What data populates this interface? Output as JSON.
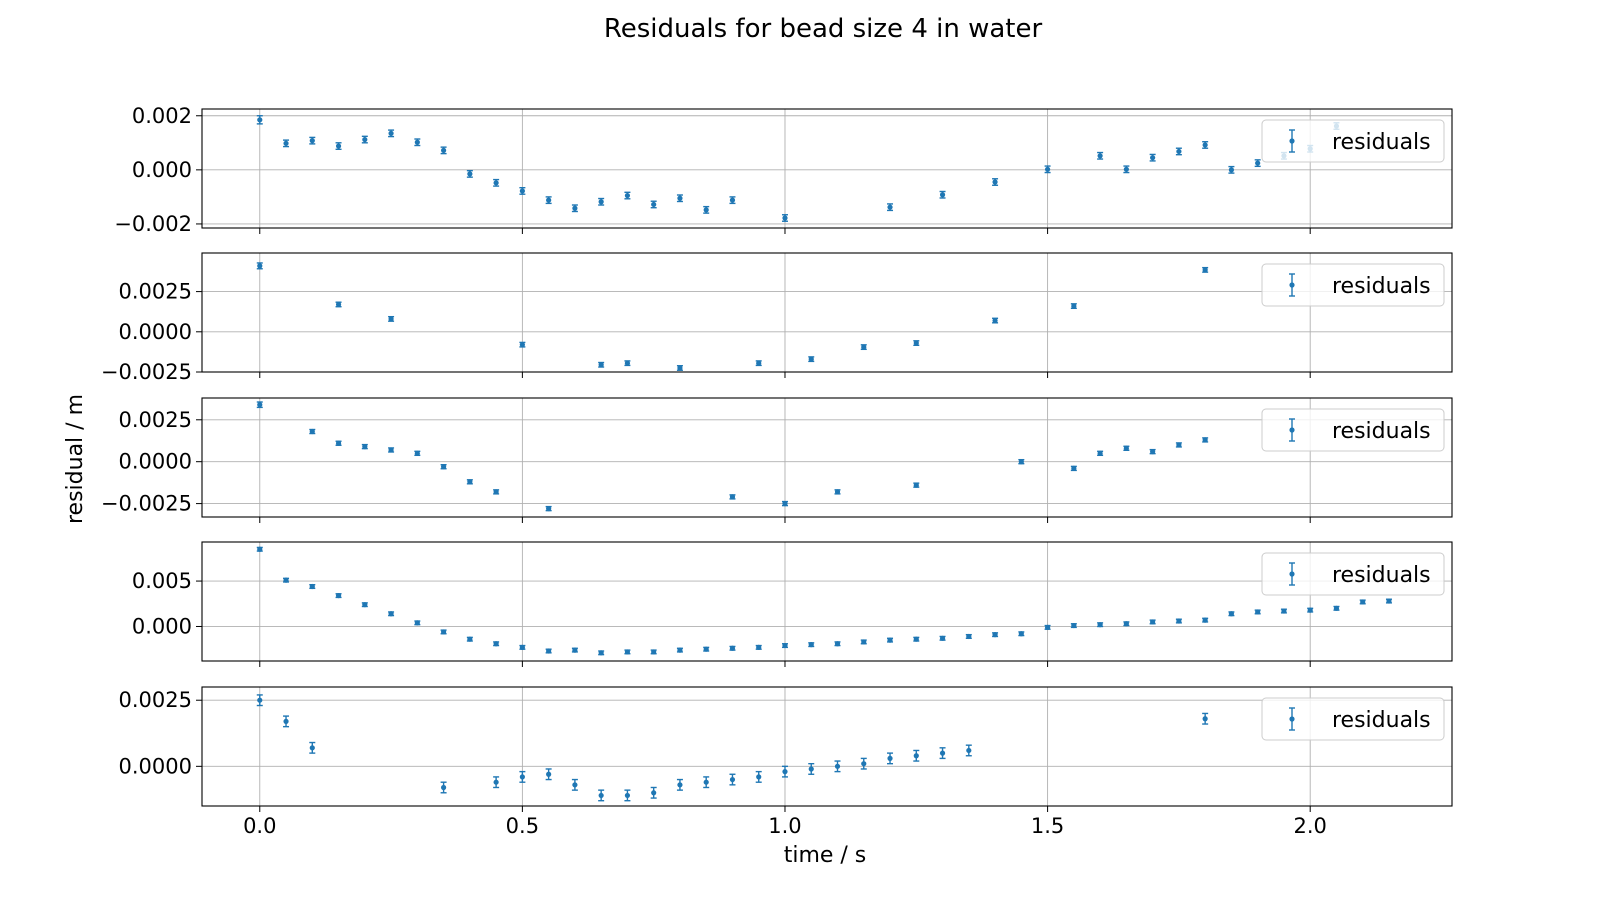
{
  "title": "Residuals for bead  size 4 in water",
  "ylabel": "residual / m",
  "xlabel": "time / s",
  "colors": {
    "series": "#1f77b4",
    "grid": "#b0b0b0",
    "axes": "#000000",
    "legend_border": "#cccccc"
  },
  "chart_data": [
    {
      "type": "scatter",
      "legend": "residuals",
      "legend_position": "upper right",
      "grid": true,
      "xlim": [
        -0.11,
        2.27
      ],
      "ylim": [
        -0.00215,
        0.00225
      ],
      "yticks": [
        -0.002,
        0.0,
        0.002
      ],
      "yticklabels": [
        "−0.002",
        "0.000",
        "0.002"
      ],
      "xticks": [
        0.0,
        0.5,
        1.0,
        1.5,
        2.0
      ],
      "xticklabels": [
        "0.0",
        "0.5",
        "1.0",
        "1.5",
        "2.0"
      ],
      "show_xticklabels": false,
      "x": [
        0.0,
        0.05,
        0.1,
        0.15,
        0.2,
        0.25,
        0.3,
        0.35,
        0.4,
        0.45,
        0.5,
        0.55,
        0.6,
        0.65,
        0.7,
        0.75,
        0.8,
        0.85,
        0.9,
        1.0,
        1.2,
        1.3,
        1.4,
        1.5,
        1.6,
        1.65,
        1.7,
        1.75,
        1.8,
        1.85,
        1.9,
        1.95,
        2.0,
        2.05
      ],
      "y": [
        0.00185,
        0.00098,
        0.00108,
        0.00088,
        0.00112,
        0.00135,
        0.00102,
        0.00072,
        -0.00015,
        -0.00048,
        -0.00078,
        -0.00112,
        -0.00142,
        -0.00118,
        -0.00095,
        -0.00128,
        -0.00105,
        -0.00148,
        -0.00112,
        -0.00178,
        -0.00138,
        -0.00092,
        -0.00045,
        2e-05,
        0.00052,
        2e-05,
        0.00045,
        0.00068,
        0.00092,
        0.0,
        0.00025,
        0.00052,
        0.00078,
        0.00162
      ],
      "yerr": [
        0.00015,
        0.00012,
        0.00012,
        0.00012,
        0.00012,
        0.00012,
        0.00012,
        0.00012,
        0.00012,
        0.00012,
        0.00012,
        0.00012,
        0.00012,
        0.00012,
        0.00012,
        0.00012,
        0.00012,
        0.00012,
        0.00012,
        0.00012,
        0.00012,
        0.00012,
        0.00012,
        0.00012,
        0.00012,
        0.00012,
        0.00012,
        0.00012,
        0.00012,
        0.00012,
        0.00012,
        0.00012,
        0.00012,
        0.00012
      ]
    },
    {
      "type": "scatter",
      "legend": "residuals",
      "legend_position": "upper right",
      "grid": true,
      "xlim": [
        -0.11,
        2.27
      ],
      "ylim": [
        -0.0025,
        0.0049
      ],
      "yticks": [
        -0.0025,
        0.0,
        0.0025
      ],
      "yticklabels": [
        "−0.0025",
        "0.0000",
        "0.0025"
      ],
      "xticks": [
        0.0,
        0.5,
        1.0,
        1.5,
        2.0
      ],
      "xticklabels": [
        "0.0",
        "0.5",
        "1.0",
        "1.5",
        "2.0"
      ],
      "show_xticklabels": false,
      "x": [
        0.0,
        0.15,
        0.25,
        0.5,
        0.65,
        0.7,
        0.8,
        0.95,
        1.05,
        1.15,
        1.25,
        1.4,
        1.55,
        1.8
      ],
      "y": [
        0.0041,
        0.0017,
        0.0008,
        -0.0008,
        -0.00205,
        -0.00195,
        -0.00225,
        -0.00195,
        -0.0017,
        -0.00095,
        -0.0007,
        0.0007,
        0.0016,
        0.00385
      ],
      "yerr": [
        0.00018,
        0.00014,
        0.00014,
        0.00014,
        0.00014,
        0.00014,
        0.00014,
        0.00014,
        0.00014,
        0.00014,
        0.00014,
        0.00014,
        0.00014,
        0.00014
      ]
    },
    {
      "type": "scatter",
      "legend": "residuals",
      "legend_position": "upper right",
      "grid": true,
      "xlim": [
        -0.11,
        2.27
      ],
      "ylim": [
        -0.0033,
        0.0038
      ],
      "yticks": [
        -0.0025,
        0.0,
        0.0025
      ],
      "yticklabels": [
        "−0.0025",
        "0.0000",
        "0.0025"
      ],
      "xticks": [
        0.0,
        0.5,
        1.0,
        1.5,
        2.0
      ],
      "xticklabels": [
        "0.0",
        "0.5",
        "1.0",
        "1.5",
        "2.0"
      ],
      "show_xticklabels": false,
      "x": [
        0.0,
        0.1,
        0.15,
        0.2,
        0.25,
        0.3,
        0.35,
        0.4,
        0.45,
        0.55,
        0.9,
        1.0,
        1.1,
        1.25,
        1.45,
        1.55,
        1.6,
        1.65,
        1.7,
        1.75,
        1.8
      ],
      "y": [
        0.0034,
        0.0018,
        0.0011,
        0.0009,
        0.0007,
        0.0005,
        -0.0003,
        -0.0012,
        -0.0018,
        -0.0028,
        -0.0021,
        -0.0025,
        -0.0018,
        -0.0014,
        0.0,
        -0.0004,
        0.0005,
        0.0008,
        0.0006,
        0.001,
        0.0013
      ],
      "yerr": [
        0.00016,
        0.00012,
        0.00012,
        0.00012,
        0.00012,
        0.00012,
        0.00012,
        0.00012,
        0.00012,
        0.00012,
        0.00012,
        0.00012,
        0.00012,
        0.00012,
        0.00012,
        0.00012,
        0.00012,
        0.00012,
        0.00012,
        0.00012,
        0.00012
      ]
    },
    {
      "type": "scatter",
      "legend": "residuals",
      "legend_position": "upper right",
      "grid": true,
      "xlim": [
        -0.11,
        2.27
      ],
      "ylim": [
        -0.0038,
        0.0093
      ],
      "yticks": [
        0.0,
        0.005
      ],
      "yticklabels": [
        "0.000",
        "0.005"
      ],
      "xticks": [
        0.0,
        0.5,
        1.0,
        1.5,
        2.0
      ],
      "xticklabels": [
        "0.0",
        "0.5",
        "1.0",
        "1.5",
        "2.0"
      ],
      "show_xticklabels": false,
      "x": [
        0.0,
        0.05,
        0.1,
        0.15,
        0.2,
        0.25,
        0.3,
        0.35,
        0.4,
        0.45,
        0.5,
        0.55,
        0.6,
        0.65,
        0.7,
        0.75,
        0.8,
        0.85,
        0.9,
        0.95,
        1.0,
        1.05,
        1.1,
        1.15,
        1.2,
        1.25,
        1.3,
        1.35,
        1.4,
        1.45,
        1.5,
        1.55,
        1.6,
        1.65,
        1.7,
        1.75,
        1.8,
        1.85,
        1.9,
        1.95,
        2.0,
        2.05,
        2.1,
        2.15
      ],
      "y": [
        0.0085,
        0.0051,
        0.0044,
        0.0034,
        0.0024,
        0.0014,
        0.0004,
        -0.0006,
        -0.0014,
        -0.0019,
        -0.0023,
        -0.0027,
        -0.0026,
        -0.0029,
        -0.0028,
        -0.0028,
        -0.0026,
        -0.0025,
        -0.0024,
        -0.0023,
        -0.0021,
        -0.002,
        -0.0019,
        -0.0017,
        -0.0015,
        -0.0014,
        -0.0013,
        -0.0011,
        -0.0009,
        -0.0008,
        -0.0001,
        0.0001,
        0.0002,
        0.0003,
        0.0005,
        0.0006,
        0.0007,
        0.0014,
        0.0016,
        0.0017,
        0.0018,
        0.002,
        0.0027,
        0.0028
      ],
      "yerr": [
        0.0002,
        0.0002,
        0.0002,
        0.0002,
        0.0002,
        0.0002,
        0.0002,
        0.0002,
        0.0002,
        0.0002,
        0.0002,
        0.0002,
        0.0002,
        0.0002,
        0.0002,
        0.0002,
        0.0002,
        0.0002,
        0.0002,
        0.0002,
        0.0002,
        0.0002,
        0.0002,
        0.0002,
        0.0002,
        0.0002,
        0.0002,
        0.0002,
        0.0002,
        0.0002,
        0.0002,
        0.0002,
        0.0002,
        0.0002,
        0.0002,
        0.0002,
        0.0002,
        0.0002,
        0.0002,
        0.0002,
        0.0002,
        0.0002,
        0.0002,
        0.0002
      ]
    },
    {
      "type": "scatter",
      "legend": "residuals",
      "legend_position": "upper right",
      "grid": true,
      "xlim": [
        -0.11,
        2.27
      ],
      "ylim": [
        -0.0015,
        0.003
      ],
      "yticks": [
        0.0,
        0.0025
      ],
      "yticklabels": [
        "0.0000",
        "0.0025"
      ],
      "xticks": [
        0.0,
        0.5,
        1.0,
        1.5,
        2.0
      ],
      "xticklabels": [
        "0.0",
        "0.5",
        "1.0",
        "1.5",
        "2.0"
      ],
      "show_xticklabels": true,
      "x": [
        0.0,
        0.05,
        0.1,
        0.35,
        0.45,
        0.5,
        0.55,
        0.6,
        0.65,
        0.7,
        0.75,
        0.8,
        0.85,
        0.9,
        0.95,
        1.0,
        1.05,
        1.1,
        1.15,
        1.2,
        1.25,
        1.3,
        1.35,
        1.8
      ],
      "y": [
        0.0025,
        0.0017,
        0.0007,
        -0.0008,
        -0.0006,
        -0.0004,
        -0.0003,
        -0.0007,
        -0.0011,
        -0.0011,
        -0.001,
        -0.0007,
        -0.0006,
        -0.0005,
        -0.0004,
        -0.0002,
        -0.0001,
        0.0,
        0.0001,
        0.0003,
        0.0004,
        0.0005,
        0.0006,
        0.0018
      ],
      "yerr": [
        0.0002,
        0.0002,
        0.0002,
        0.0002,
        0.0002,
        0.0002,
        0.0002,
        0.0002,
        0.0002,
        0.0002,
        0.0002,
        0.0002,
        0.0002,
        0.0002,
        0.0002,
        0.0002,
        0.0002,
        0.0002,
        0.0002,
        0.0002,
        0.0002,
        0.0002,
        0.0002,
        0.0002
      ]
    }
  ]
}
